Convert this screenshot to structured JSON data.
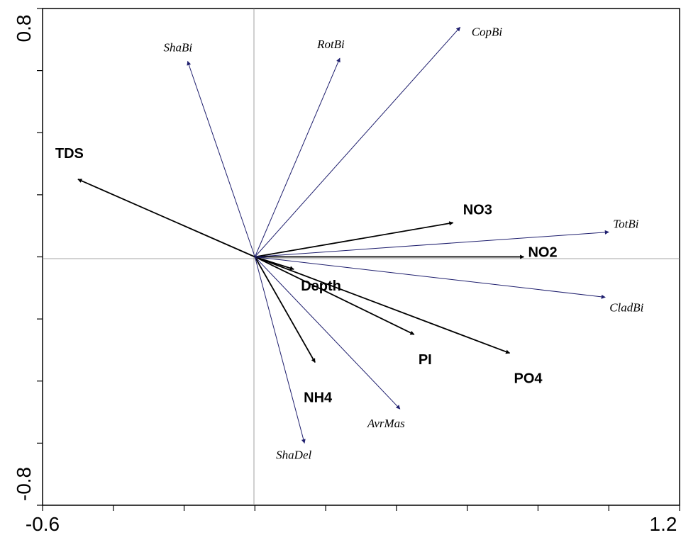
{
  "chart_data": {
    "type": "scatter",
    "subtype": "biplot",
    "title": "",
    "xlabel": "",
    "ylabel": "",
    "xlim": [
      -0.6,
      1.2
    ],
    "ylim": [
      -0.8,
      0.8
    ],
    "x_tick_labels": [
      "-0.6",
      "1.2"
    ],
    "y_tick_labels": [
      "0.8",
      "-0.8"
    ],
    "grid": false,
    "zero_lines": true,
    "colors": {
      "environmental": "#000000",
      "species": "#1f1f6e"
    },
    "series": [
      {
        "name": "environmental",
        "vectors": [
          {
            "label": "TDS",
            "x": -0.5,
            "y": 0.25
          },
          {
            "label": "NO3",
            "x": 0.56,
            "y": 0.11
          },
          {
            "label": "NO2",
            "x": 0.76,
            "y": 0.0
          },
          {
            "label": "Depth",
            "x": 0.11,
            "y": -0.04
          },
          {
            "label": "PI",
            "x": 0.45,
            "y": -0.25
          },
          {
            "label": "PO4",
            "x": 0.72,
            "y": -0.31
          },
          {
            "label": "NH4",
            "x": 0.17,
            "y": -0.34
          }
        ]
      },
      {
        "name": "species",
        "vectors": [
          {
            "label": "ShaBi",
            "x": -0.19,
            "y": 0.63
          },
          {
            "label": "RotBi",
            "x": 0.24,
            "y": 0.64
          },
          {
            "label": "CopBi",
            "x": 0.58,
            "y": 0.74
          },
          {
            "label": "TotBi",
            "x": 1.0,
            "y": 0.08
          },
          {
            "label": "CladBi",
            "x": 0.99,
            "y": -0.13
          },
          {
            "label": "AvrMas",
            "x": 0.41,
            "y": -0.49
          },
          {
            "label": "ShaDel",
            "x": 0.14,
            "y": -0.6
          }
        ]
      }
    ]
  }
}
